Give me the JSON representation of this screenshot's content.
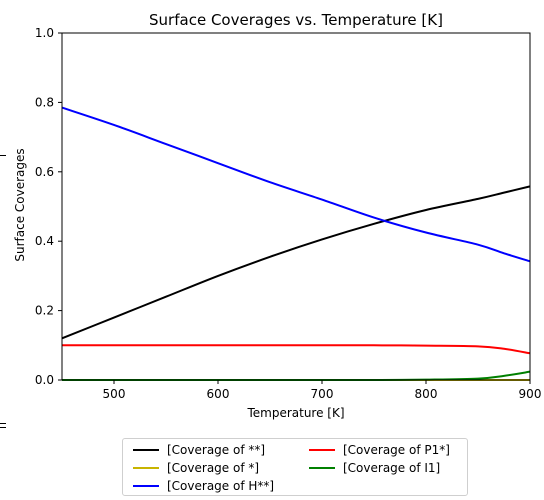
{
  "chart_data": {
    "type": "line",
    "title": "Surface Coverages vs. Temperature [K]",
    "xlabel": "Temperature [K]",
    "ylabel": "Surface Coverages",
    "xlim": [
      450,
      900
    ],
    "ylim": [
      0,
      1.0
    ],
    "xticks": [
      "500",
      "600",
      "700",
      "800",
      "900"
    ],
    "yticks": [
      "0.0",
      "0.2",
      "0.4",
      "0.6",
      "0.8",
      "1.0"
    ],
    "grid": false,
    "legend_position": "below plot",
    "x": [
      450,
      500,
      550,
      600,
      650,
      700,
      750,
      800,
      850,
      875,
      900
    ],
    "series": [
      {
        "name": "[Coverage of **]",
        "color": "#000000",
        "values": [
          0.12,
          0.18,
          0.24,
          0.3,
          0.355,
          0.405,
          0.45,
          0.49,
          0.522,
          0.54,
          0.558
        ]
      },
      {
        "name": "[Coverage of *]",
        "color": "#c8b400",
        "values": [
          0.0,
          0.0,
          0.0,
          0.0,
          0.0,
          0.0,
          0.0,
          0.0,
          0.0,
          0.0,
          0.0
        ]
      },
      {
        "name": "[Coverage of H**]",
        "color": "#0000ff",
        "values": [
          0.785,
          0.735,
          0.68,
          0.625,
          0.57,
          0.52,
          0.468,
          0.425,
          0.39,
          0.365,
          0.342
        ]
      },
      {
        "name": "[Coverage of P1*]",
        "color": "#ff0000",
        "values": [
          0.1,
          0.1,
          0.1,
          0.1,
          0.1,
          0.1,
          0.1,
          0.099,
          0.097,
          0.09,
          0.077
        ]
      },
      {
        "name": "[Coverage of I1]",
        "color": "#008000",
        "values": [
          0.0,
          0.0,
          0.0,
          0.0,
          0.0,
          0.0,
          0.0,
          0.001,
          0.004,
          0.012,
          0.024
        ]
      }
    ]
  }
}
